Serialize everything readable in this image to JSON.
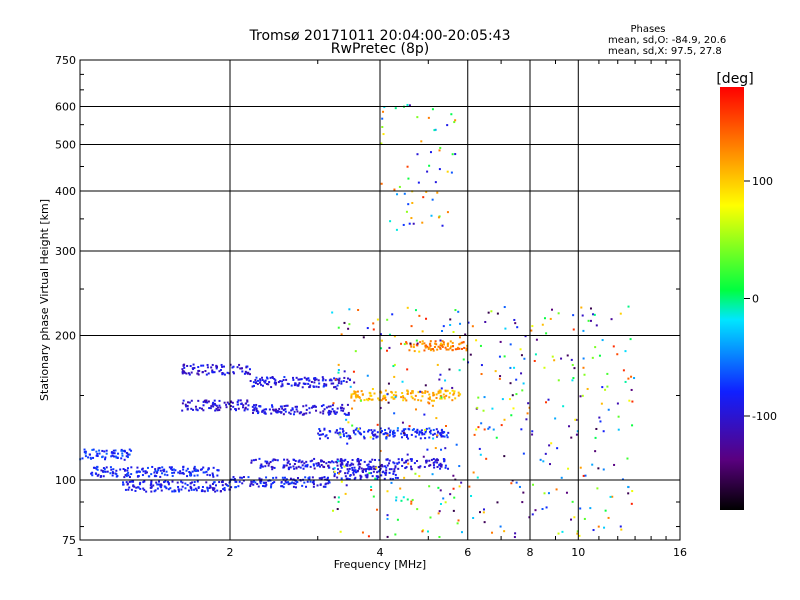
{
  "chart_data": {
    "type": "scatter",
    "title": "Tromsø 20171011 20:04:00-20:05:43",
    "subtitle": "RwPretec (8p)",
    "xlabel": "Frequency [MHz]",
    "ylabel": "Stationary phase Virtual Height [km]",
    "x_scale": "log",
    "y_scale": "log",
    "xlim": [
      1,
      16
    ],
    "ylim": [
      75,
      750
    ],
    "x_ticks": [
      1,
      2,
      4,
      6,
      8,
      10,
      16
    ],
    "y_ticks": [
      75,
      100,
      200,
      300,
      400,
      500,
      600,
      750
    ],
    "grid": true,
    "phases": {
      "heading": "Phases",
      "o_stats": "mean, sd,O: -84.9, 20.6",
      "x_stats": "mean, sd,X:  97.5, 27.8"
    },
    "colorbar": {
      "label": "[deg]",
      "ticks": [
        -100,
        0,
        100
      ],
      "range": [
        -180,
        180
      ],
      "colormap": "rainbow"
    },
    "traces": [
      {
        "x_range": [
          1.0,
          1.27
        ],
        "height": 113,
        "phase": -75
      },
      {
        "x_range": [
          1.05,
          1.9
        ],
        "height": 104,
        "phase": -82
      },
      {
        "x_range": [
          1.2,
          2.0
        ],
        "height": 97,
        "phase": -88
      },
      {
        "x_range": [
          2.0,
          3.2
        ],
        "height": 99,
        "phase": -85
      },
      {
        "x_range": [
          3.2,
          4.4
        ],
        "height": 103,
        "phase": -90
      },
      {
        "x_range": [
          2.2,
          5.5
        ],
        "height": 108,
        "phase": -95
      },
      {
        "x_range": [
          1.6,
          2.2
        ],
        "height": 170,
        "phase": -100
      },
      {
        "x_range": [
          1.6,
          2.2
        ],
        "height": 143,
        "phase": -100
      },
      {
        "x_range": [
          2.2,
          3.5
        ],
        "height": 160,
        "phase": -90
      },
      {
        "x_range": [
          2.2,
          3.5
        ],
        "height": 140,
        "phase": -95
      },
      {
        "x_range": [
          3.0,
          5.5
        ],
        "height": 125,
        "phase": -80
      },
      {
        "x_range": [
          3.5,
          5.8
        ],
        "height": 150,
        "phase": 110
      },
      {
        "x_range": [
          4.5,
          6.0
        ],
        "height": 190,
        "phase": 130
      }
    ]
  }
}
